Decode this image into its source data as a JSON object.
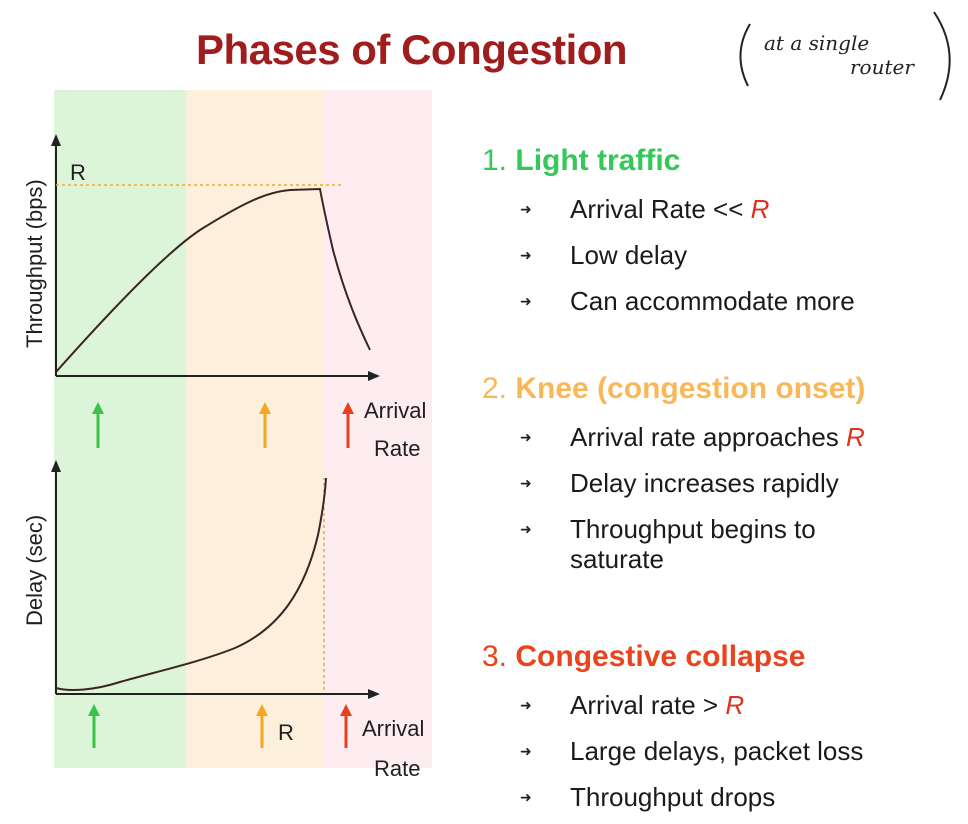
{
  "title": "Phases of Congestion",
  "handwritten_note": {
    "line1": "at a single",
    "line2": "router"
  },
  "phases": [
    {
      "number": "1.",
      "name": "Light traffic",
      "color": "#34c759",
      "bullets": [
        {
          "text": "Arrival Rate << ",
          "r_symbol": "R"
        },
        {
          "text": "Low delay",
          "r_symbol": ""
        },
        {
          "text": "Can accommodate more",
          "r_symbol": ""
        }
      ]
    },
    {
      "number": "2.",
      "name": "Knee (congestion onset)",
      "color": "#f8b85a",
      "bullets": [
        {
          "text": "Arrival rate approaches ",
          "r_symbol": "R"
        },
        {
          "text": "Delay increases rapidly",
          "r_symbol": ""
        },
        {
          "text": "Throughput begins to",
          "text2": "saturate",
          "r_symbol": ""
        }
      ]
    },
    {
      "number": "3.",
      "name": "Congestive collapse",
      "color": "#e8451f",
      "bullets": [
        {
          "text": "Arrival rate > ",
          "r_symbol": "R"
        },
        {
          "text": "Large delays, packet loss",
          "r_symbol": ""
        },
        {
          "text": "Throughput drops",
          "r_symbol": ""
        }
      ]
    }
  ],
  "diagram": {
    "zone_colors": {
      "light": "#dcf5d8",
      "knee": "#fcefdc",
      "collapse": "#fdecf0"
    },
    "throughput_plot": {
      "ylabel": "Throughput (bps)",
      "r_label": "R",
      "xlabel_line1": "Arrival",
      "xlabel_line2": "Rate",
      "curve_color": "#3b2421",
      "r_line_color": "#f2a93b"
    },
    "delay_plot": {
      "ylabel": "Delay (sec)",
      "r_label": "R",
      "xlabel_line1": "Arrival",
      "xlabel_line2": "Rate",
      "curve_color": "#3b2421"
    },
    "arrow_colors": {
      "light": "#3cc24a",
      "knee": "#f5a623",
      "collapse": "#e8401f"
    }
  }
}
